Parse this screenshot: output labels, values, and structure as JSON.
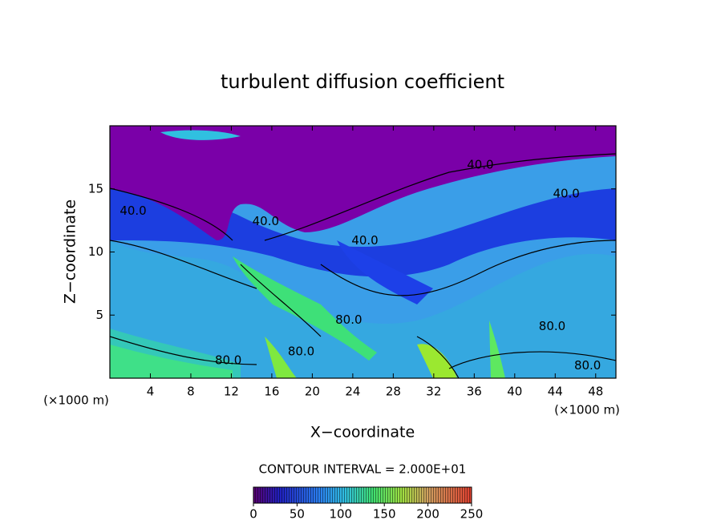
{
  "chart_data": {
    "type": "contour",
    "title": "turbulent diffusion coefficient",
    "x_label": "X−coordinate",
    "y_label": "Z−coordinate",
    "x_unit_label": "(×1000 m)",
    "xlim": [
      0,
      50
    ],
    "xticks": [
      4,
      8,
      12,
      16,
      20,
      24,
      28,
      32,
      36,
      40,
      44,
      48
    ],
    "ylim": [
      0,
      20
    ],
    "yticks": [
      5,
      10,
      15
    ],
    "contour_interval_label": "CONTOUR INTERVAL = 2.000E+01",
    "colorbar": {
      "clim": [
        0,
        250
      ],
      "ticks": [
        0,
        50,
        100,
        150,
        200,
        250
      ]
    },
    "contour_labels": [
      {
        "text": "40.0",
        "x": 2.3,
        "y": 13.25
      },
      {
        "text": "40.0",
        "x": 15.4,
        "y": 12.4
      },
      {
        "text": "40.0",
        "x": 25.2,
        "y": 10.9
      },
      {
        "text": "40.0",
        "x": 36.6,
        "y": 16.9
      },
      {
        "text": "40.0",
        "x": 45.1,
        "y": 14.6
      },
      {
        "text": "80.0",
        "x": 11.7,
        "y": 1.4
      },
      {
        "text": "80.0",
        "x": 18.9,
        "y": 2.1
      },
      {
        "text": "80.0",
        "x": 23.6,
        "y": 4.6
      },
      {
        "text": "80.0",
        "x": 43.7,
        "y": 4.1
      },
      {
        "text": "80.0",
        "x": 47.2,
        "y": 1.0
      }
    ]
  }
}
